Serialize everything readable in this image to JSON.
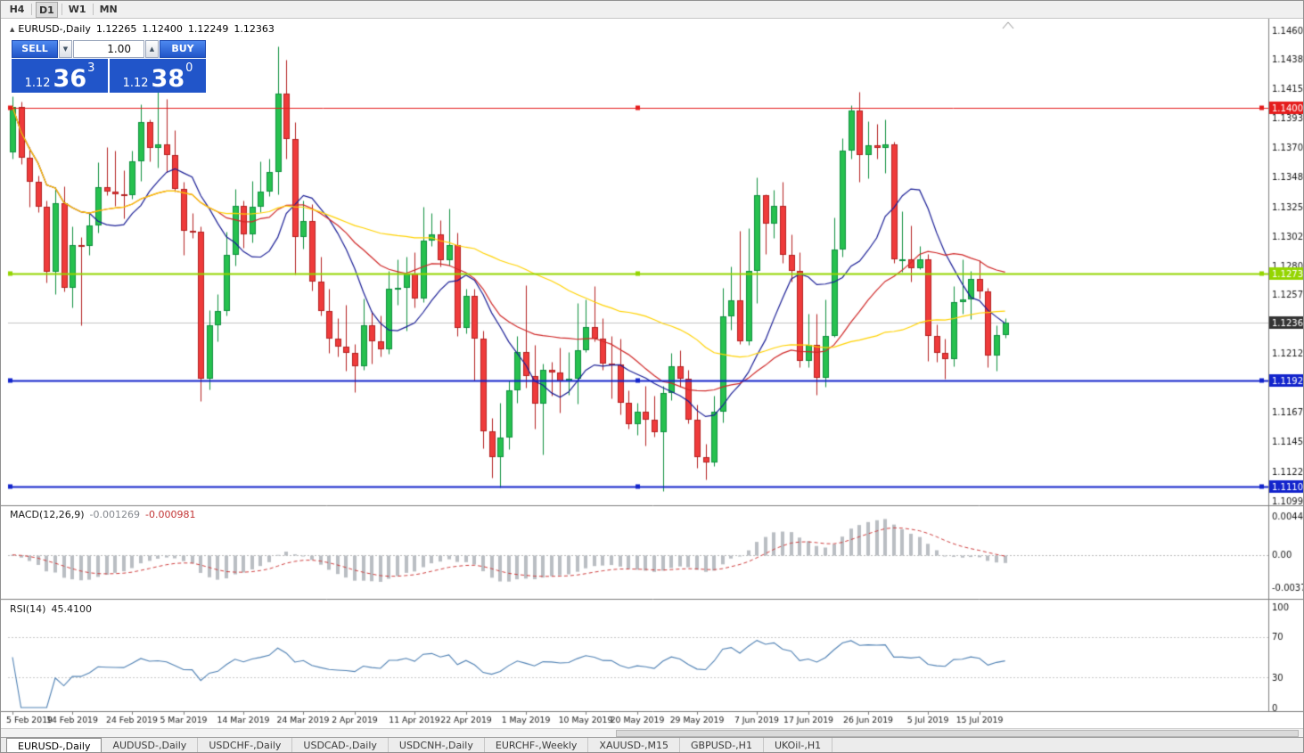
{
  "toolbar": {
    "timeframes": [
      "H4",
      "D1",
      "W1",
      "MN"
    ],
    "active": "D1"
  },
  "chart": {
    "title": {
      "icon": "▲",
      "symbol": "EURUSD-,Daily",
      "open": "1.12265",
      "high": "1.12400",
      "low": "1.12249",
      "close": "1.12363"
    },
    "trade_panel": {
      "sell_label": "SELL",
      "buy_label": "BUY",
      "volume": "1.00",
      "down_arrow": "▼",
      "up_arrow": "▲",
      "sell_price": {
        "small": "1.12",
        "big": "36",
        "sup": "3"
      },
      "buy_price": {
        "small": "1.12",
        "big": "38",
        "sup": "0"
      }
    }
  },
  "price_axis": {
    "labels": [
      "1.14605",
      "1.14380",
      "1.14155",
      "1.13930",
      "1.13705",
      "1.13480",
      "1.13250",
      "1.13025",
      "1.12800",
      "1.12575",
      "1.12350",
      "1.12125",
      "1.11900",
      "1.11675",
      "1.11450",
      "1.11220",
      "1.10995"
    ]
  },
  "hlines": [
    {
      "price": 1.14009,
      "label": "1.14009",
      "color": "#e51c1c",
      "width": 1
    },
    {
      "price": 1.12736,
      "label": "1.12736",
      "color": "#94d500",
      "width": 2
    },
    {
      "price": 1.11921,
      "label": "1.11921",
      "color": "#1224cc",
      "width": 2
    },
    {
      "price": 1.11103,
      "label": "1.11103",
      "color": "#1224cc",
      "width": 2
    }
  ],
  "current_price": {
    "value": 1.12363,
    "label": "1.12363",
    "tag_color": "#343434"
  },
  "chart_data": {
    "type": "candlestick",
    "symbol": "EURUSD-",
    "timeframe": "Daily",
    "ylim": [
      1.10995,
      1.14605
    ],
    "candles": [
      [
        1.1367,
        1.141,
        1.1362,
        1.1402
      ],
      [
        1.1402,
        1.1406,
        1.1358,
        1.1363
      ],
      [
        1.1363,
        1.1371,
        1.1325,
        1.1344
      ],
      [
        1.1344,
        1.1349,
        1.1321,
        1.1325
      ],
      [
        1.1325,
        1.133,
        1.1267,
        1.1275
      ],
      [
        1.1275,
        1.134,
        1.1258,
        1.1328
      ],
      [
        1.1328,
        1.1341,
        1.126,
        1.1263
      ],
      [
        1.1263,
        1.131,
        1.1248,
        1.1296
      ],
      [
        1.1296,
        1.1302,
        1.1234,
        1.1295
      ],
      [
        1.1295,
        1.132,
        1.1288,
        1.1311
      ],
      [
        1.1311,
        1.1359,
        1.1305,
        1.134
      ],
      [
        1.134,
        1.1371,
        1.1334,
        1.1337
      ],
      [
        1.1337,
        1.1368,
        1.1326,
        1.1335
      ],
      [
        1.1335,
        1.1353,
        1.1316,
        1.1334
      ],
      [
        1.1334,
        1.1368,
        1.1331,
        1.136
      ],
      [
        1.136,
        1.1404,
        1.1345,
        1.139
      ],
      [
        1.139,
        1.1392,
        1.136,
        1.137
      ],
      [
        1.137,
        1.142,
        1.1355,
        1.1373
      ],
      [
        1.1373,
        1.1408,
        1.1352,
        1.1365
      ],
      [
        1.1365,
        1.1384,
        1.1337,
        1.1339
      ],
      [
        1.1339,
        1.1344,
        1.1288,
        1.1307
      ],
      [
        1.1307,
        1.132,
        1.1301,
        1.1306
      ],
      [
        1.1306,
        1.131,
        1.1176,
        1.1193
      ],
      [
        1.1193,
        1.1246,
        1.1185,
        1.1234
      ],
      [
        1.1234,
        1.1258,
        1.1222,
        1.1245
      ],
      [
        1.1245,
        1.1306,
        1.1242,
        1.1288
      ],
      [
        1.1288,
        1.1339,
        1.128,
        1.1326
      ],
      [
        1.1326,
        1.133,
        1.1294,
        1.1304
      ],
      [
        1.1304,
        1.1345,
        1.1298,
        1.1325
      ],
      [
        1.1325,
        1.136,
        1.1321,
        1.1337
      ],
      [
        1.1337,
        1.1362,
        1.1333,
        1.1352
      ],
      [
        1.1352,
        1.1448,
        1.1335,
        1.1412
      ],
      [
        1.1412,
        1.1438,
        1.1362,
        1.1377
      ],
      [
        1.1377,
        1.139,
        1.1273,
        1.1302
      ],
      [
        1.1302,
        1.133,
        1.1293,
        1.1314
      ],
      [
        1.1314,
        1.1327,
        1.1261,
        1.1268
      ],
      [
        1.1268,
        1.1287,
        1.1242,
        1.1245
      ],
      [
        1.1245,
        1.1262,
        1.1213,
        1.1224
      ],
      [
        1.1224,
        1.124,
        1.121,
        1.1218
      ],
      [
        1.1218,
        1.125,
        1.1199,
        1.1213
      ],
      [
        1.1213,
        1.122,
        1.1183,
        1.1203
      ],
      [
        1.1203,
        1.1255,
        1.12,
        1.1234
      ],
      [
        1.1234,
        1.1245,
        1.1205,
        1.1222
      ],
      [
        1.1222,
        1.1242,
        1.121,
        1.1216
      ],
      [
        1.1216,
        1.1276,
        1.1212,
        1.1262
      ],
      [
        1.1262,
        1.1285,
        1.125,
        1.1263
      ],
      [
        1.1263,
        1.1287,
        1.123,
        1.1274
      ],
      [
        1.1274,
        1.129,
        1.1248,
        1.1255
      ],
      [
        1.1255,
        1.1325,
        1.1252,
        1.1299
      ],
      [
        1.1299,
        1.132,
        1.1295,
        1.1304
      ],
      [
        1.1304,
        1.1315,
        1.1279,
        1.1284
      ],
      [
        1.1284,
        1.1324,
        1.128,
        1.1296
      ],
      [
        1.1296,
        1.1305,
        1.1226,
        1.1232
      ],
      [
        1.1232,
        1.1262,
        1.1228,
        1.1257
      ],
      [
        1.1257,
        1.1262,
        1.1192,
        1.1224
      ],
      [
        1.1224,
        1.123,
        1.114,
        1.1153
      ],
      [
        1.1153,
        1.1163,
        1.1117,
        1.1133
      ],
      [
        1.1133,
        1.1175,
        1.111,
        1.1148
      ],
      [
        1.1148,
        1.1192,
        1.1139,
        1.1184
      ],
      [
        1.1184,
        1.1226,
        1.1175,
        1.1214
      ],
      [
        1.1214,
        1.1265,
        1.1186,
        1.1195
      ],
      [
        1.1195,
        1.1219,
        1.1155,
        1.1174
      ],
      [
        1.1174,
        1.1205,
        1.1135,
        1.12
      ],
      [
        1.12,
        1.1206,
        1.118,
        1.1198
      ],
      [
        1.1198,
        1.1217,
        1.1167,
        1.1191
      ],
      [
        1.1191,
        1.1214,
        1.1181,
        1.1193
      ],
      [
        1.1193,
        1.1251,
        1.1174,
        1.1215
      ],
      [
        1.1215,
        1.1254,
        1.1214,
        1.1233
      ],
      [
        1.1233,
        1.1264,
        1.1222,
        1.1224
      ],
      [
        1.1224,
        1.124,
        1.12,
        1.1205
      ],
      [
        1.1205,
        1.1226,
        1.1178,
        1.1204
      ],
      [
        1.1204,
        1.1224,
        1.1166,
        1.1175
      ],
      [
        1.1175,
        1.1184,
        1.1155,
        1.1158
      ],
      [
        1.1158,
        1.1175,
        1.115,
        1.1168
      ],
      [
        1.1168,
        1.1188,
        1.1142,
        1.1162
      ],
      [
        1.1162,
        1.118,
        1.1149,
        1.1152
      ],
      [
        1.1152,
        1.1188,
        1.1107,
        1.1182
      ],
      [
        1.1182,
        1.1213,
        1.1177,
        1.1203
      ],
      [
        1.1203,
        1.1215,
        1.1187,
        1.1193
      ],
      [
        1.1193,
        1.12,
        1.1159,
        1.1162
      ],
      [
        1.1162,
        1.1173,
        1.1125,
        1.1133
      ],
      [
        1.1133,
        1.1143,
        1.1116,
        1.1129
      ],
      [
        1.1129,
        1.118,
        1.1126,
        1.1168
      ],
      [
        1.1168,
        1.1263,
        1.116,
        1.1241
      ],
      [
        1.1241,
        1.1279,
        1.1231,
        1.1253
      ],
      [
        1.1253,
        1.1307,
        1.122,
        1.1222
      ],
      [
        1.1222,
        1.1309,
        1.1219,
        1.1276
      ],
      [
        1.1276,
        1.1348,
        1.1251,
        1.1334
      ],
      [
        1.1334,
        1.1335,
        1.1289,
        1.1312
      ],
      [
        1.1312,
        1.1338,
        1.1301,
        1.1326
      ],
      [
        1.1326,
        1.1344,
        1.1282,
        1.1288
      ],
      [
        1.1288,
        1.1304,
        1.1268,
        1.1276
      ],
      [
        1.1276,
        1.129,
        1.1202,
        1.1207
      ],
      [
        1.1207,
        1.1243,
        1.1202,
        1.1219
      ],
      [
        1.1219,
        1.1243,
        1.1181,
        1.1194
      ],
      [
        1.1194,
        1.1254,
        1.1187,
        1.1226
      ],
      [
        1.1226,
        1.1317,
        1.1225,
        1.1292
      ],
      [
        1.1292,
        1.1378,
        1.1287,
        1.1368
      ],
      [
        1.1368,
        1.1403,
        1.1362,
        1.1399
      ],
      [
        1.1399,
        1.1413,
        1.1344,
        1.1365
      ],
      [
        1.1365,
        1.1391,
        1.1347,
        1.1372
      ],
      [
        1.1372,
        1.1389,
        1.1362,
        1.137
      ],
      [
        1.137,
        1.1392,
        1.1351,
        1.1373
      ],
      [
        1.1373,
        1.1375,
        1.1282,
        1.1285
      ],
      [
        1.1285,
        1.1322,
        1.1275,
        1.1285
      ],
      [
        1.1285,
        1.1311,
        1.1268,
        1.1278
      ],
      [
        1.1278,
        1.1295,
        1.1277,
        1.1285
      ],
      [
        1.1285,
        1.1289,
        1.1207,
        1.1226
      ],
      [
        1.1226,
        1.1235,
        1.1206,
        1.1213
      ],
      [
        1.1213,
        1.1224,
        1.1193,
        1.1208
      ],
      [
        1.1208,
        1.1264,
        1.1203,
        1.1252
      ],
      [
        1.1252,
        1.1285,
        1.1243,
        1.1254
      ],
      [
        1.1254,
        1.1276,
        1.1239,
        1.127
      ],
      [
        1.127,
        1.1284,
        1.1255,
        1.126
      ],
      [
        1.126,
        1.1263,
        1.1202,
        1.1211
      ],
      [
        1.1211,
        1.1234,
        1.1199,
        1.1227
      ],
      [
        1.12265,
        1.124,
        1.12249,
        1.12363
      ]
    ],
    "date_ticks": [
      {
        "label": "5 Feb 2019",
        "bar": 0
      },
      {
        "label": "14 Feb 2019",
        "bar": 7
      },
      {
        "label": "24 Feb 2019",
        "bar": 14
      },
      {
        "label": "5 Mar 2019",
        "bar": 20
      },
      {
        "label": "14 Mar 2019",
        "bar": 27
      },
      {
        "label": "24 Mar 2019",
        "bar": 34
      },
      {
        "label": "2 Apr 2019",
        "bar": 40
      },
      {
        "label": "11 Apr 2019",
        "bar": 47
      },
      {
        "label": "22 Apr 2019",
        "bar": 53
      },
      {
        "label": "1 May 2019",
        "bar": 60
      },
      {
        "label": "10 May 2019",
        "bar": 67
      },
      {
        "label": "20 May 2019",
        "bar": 73
      },
      {
        "label": "29 May 2019",
        "bar": 80
      },
      {
        "label": "7 Jun 2019",
        "bar": 87
      },
      {
        "label": "17 Jun 2019",
        "bar": 93
      },
      {
        "label": "26 Jun 2019",
        "bar": 100
      },
      {
        "label": "5 Jul 2019",
        "bar": 107
      },
      {
        "label": "15 Jul 2019",
        "bar": 113
      }
    ],
    "moving_averages": [
      {
        "period": 10,
        "color": "#1a1e96"
      },
      {
        "period": 25,
        "color": "#d02828"
      },
      {
        "period": 50,
        "color": "#ffd200"
      }
    ],
    "up_color": "#26c14f",
    "down_color": "#ef3b3b"
  },
  "macd": {
    "label": "MACD(12,26,9)",
    "value_main": "-0.001269",
    "value_signal": "-0.000981",
    "axis_labels": [
      "0.004465",
      "0.00",
      "-0.003715"
    ],
    "ymax": 0.004465,
    "ymin": -0.003715,
    "fast": 12,
    "slow": 26,
    "signal": 9,
    "hist_color": "#babec3",
    "signal_color": "#d04040"
  },
  "rsi": {
    "label": "RSI(14)",
    "value": "45.4100",
    "axis_labels": [
      "100",
      "70",
      "30",
      "0"
    ],
    "levels": [
      70,
      30
    ],
    "period": 14,
    "line_color": "#4f81b4"
  },
  "tabs": [
    {
      "label": "EURUSD-,Daily",
      "active": true
    },
    {
      "label": "AUDUSD-,Daily",
      "active": false
    },
    {
      "label": "USDCHF-,Daily",
      "active": false
    },
    {
      "label": "USDCAD-,Daily",
      "active": false
    },
    {
      "label": "USDCNH-,Daily",
      "active": false
    },
    {
      "label": "EURCHF-,Weekly",
      "active": false
    },
    {
      "label": "XAUUSD-,M15",
      "active": false
    },
    {
      "label": "GBPUSD-,H1",
      "active": false
    },
    {
      "label": "UKOil-,H1",
      "active": false
    }
  ]
}
